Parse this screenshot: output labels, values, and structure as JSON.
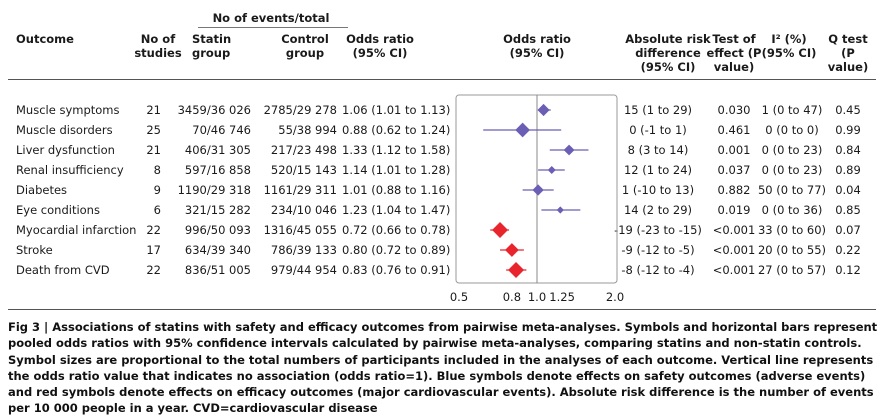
{
  "headers": {
    "group_title": "No of events/total",
    "outcome": "Outcome",
    "no_studies": "No of studies",
    "statin": "Statin group",
    "control": "Control group",
    "or_text": "Odds ratio (95% CI)",
    "or_plot": "Odds ratio (95% CI)",
    "ard": "Absolute risk difference (95% CI)",
    "test_effect": "Test of effect (P value)",
    "i2": "I² (%) (95% CI)",
    "q_test": "Q test (P value)"
  },
  "rows": [
    {
      "outcome": "Muscle symptoms",
      "studies": "21",
      "statin": "3459/36 026",
      "control": "2785/29 278",
      "or": "1.06 (1.01 to 1.13)",
      "ard": "15 (1 to 29)",
      "test": "0.030",
      "i2": "1 (0 to 47)",
      "q": "0.45"
    },
    {
      "outcome": "Muscle disorders",
      "studies": "25",
      "statin": "70/46 746",
      "control": "55/38 994",
      "or": "0.88 (0.62 to 1.24)",
      "ard": "0 (-1 to 1)",
      "test": "0.461",
      "i2": "0 (0 to 0)",
      "q": "0.99"
    },
    {
      "outcome": "Liver dysfunction",
      "studies": "21",
      "statin": "406/31 305",
      "control": "217/23 498",
      "or": "1.33 (1.12 to 1.58)",
      "ard": "8 (3 to 14)",
      "test": "0.001",
      "i2": "0 (0 to 23)",
      "q": "0.84"
    },
    {
      "outcome": "Renal insufficiency",
      "studies": "8",
      "statin": "597/16 858",
      "control": "520/15 143",
      "or": "1.14 (1.01 to 1.28)",
      "ard": "12 (1 to 24)",
      "test": "0.037",
      "i2": "0 (0 to 23)",
      "q": "0.89"
    },
    {
      "outcome": "Diabetes",
      "studies": "9",
      "statin": "1190/29 318",
      "control": "1161/29 311",
      "or": "1.01 (0.88 to 1.16)",
      "ard": "1 (-10 to 13)",
      "test": "0.882",
      "i2": "50 (0 to 77)",
      "q": "0.04"
    },
    {
      "outcome": "Eye conditions",
      "studies": "6",
      "statin": "321/15 282",
      "control": "234/10 046",
      "or": "1.23 (1.04 to 1.47)",
      "ard": "14 (2 to 29)",
      "test": "0.019",
      "i2": "0 (0 to 36)",
      "q": "0.85"
    },
    {
      "outcome": "Myocardial infarction",
      "studies": "22",
      "statin": "996/50 093",
      "control": "1316/45 055",
      "or": "0.72 (0.66 to 0.78)",
      "ard": "-19 (-23 to -15)",
      "test": "<0.001",
      "i2": "33 (0 to 60)",
      "q": "0.07"
    },
    {
      "outcome": "Stroke",
      "studies": "17",
      "statin": "634/39 340",
      "control": "786/39 133",
      "or": "0.80 (0.72 to 0.89)",
      "ard": "-9 (-12 to -5)",
      "test": "<0.001",
      "i2": "20 (0 to 55)",
      "q": "0.22"
    },
    {
      "outcome": "Death from CVD",
      "studies": "22",
      "statin": "836/51 005",
      "control": "979/44 954",
      "or": "0.83 (0.76 to 0.91)",
      "ard": "-8 (-12 to -4)",
      "test": "<0.001",
      "i2": "27 (0 to 57)",
      "q": "0.12"
    }
  ],
  "caption": "Fig 3 | Associations of statins with safety and efficacy outcomes from pairwise meta-analyses. Symbols and horizontal bars represent pooled odds ratios with 95% confidence intervals calculated by pairwise meta-analyses, comparing statins and non-statin controls. Symbol sizes are proportional to the total numbers of participants included in the analyses of each outcome. Vertical line represents the odds ratio value that indicates no association (odds ratio=1). Blue symbols denote effects on safety outcomes (adverse events) and red symbols denote effects on efficacy outcomes (major cardiovascular events). Absolute risk difference is the number of events per 10 000 people in a year. CVD=cardiovascular disease",
  "colors": {
    "safety": "#6b5fb5",
    "efficacy": "#e8242c",
    "reference_line": "#888888"
  },
  "chart_data": {
    "type": "scatter",
    "subtype": "forest_plot",
    "xlabel": "",
    "xticks": [
      0.5,
      0.8,
      1.0,
      1.25,
      2.0
    ],
    "xtick_labels": [
      "0.5",
      "0.8",
      "1.0",
      "1.25",
      "2.0"
    ],
    "xlim": [
      0.5,
      2.0
    ],
    "x_scale": "log",
    "reference_line": 1.0,
    "grid": false,
    "categories": [
      "Muscle symptoms",
      "Muscle disorders",
      "Liver dysfunction",
      "Renal insufficiency",
      "Diabetes",
      "Eye conditions",
      "Myocardial infarction",
      "Stroke",
      "Death from CVD"
    ],
    "series": [
      {
        "points": [
          {
            "category": "Muscle symptoms",
            "or": 1.06,
            "lo": 1.01,
            "hi": 1.13,
            "group": "safety",
            "participants": 65304
          },
          {
            "category": "Muscle disorders",
            "or": 0.88,
            "lo": 0.62,
            "hi": 1.24,
            "group": "safety",
            "participants": 85740
          },
          {
            "category": "Liver dysfunction",
            "or": 1.33,
            "lo": 1.12,
            "hi": 1.58,
            "group": "safety",
            "participants": 54803
          },
          {
            "category": "Renal insufficiency",
            "or": 1.14,
            "lo": 1.01,
            "hi": 1.28,
            "group": "safety",
            "participants": 32001
          },
          {
            "category": "Diabetes",
            "or": 1.01,
            "lo": 0.88,
            "hi": 1.16,
            "group": "safety",
            "participants": 58629
          },
          {
            "category": "Eye conditions",
            "or": 1.23,
            "lo": 1.04,
            "hi": 1.47,
            "group": "safety",
            "participants": 25328
          },
          {
            "category": "Myocardial infarction",
            "or": 0.72,
            "lo": 0.66,
            "hi": 0.78,
            "group": "efficacy",
            "participants": 95148
          },
          {
            "category": "Stroke",
            "or": 0.8,
            "lo": 0.72,
            "hi": 0.89,
            "group": "efficacy",
            "participants": 78473
          },
          {
            "category": "Death from CVD",
            "or": 0.83,
            "lo": 0.76,
            "hi": 0.91,
            "group": "efficacy",
            "participants": 95959
          }
        ]
      }
    ]
  }
}
